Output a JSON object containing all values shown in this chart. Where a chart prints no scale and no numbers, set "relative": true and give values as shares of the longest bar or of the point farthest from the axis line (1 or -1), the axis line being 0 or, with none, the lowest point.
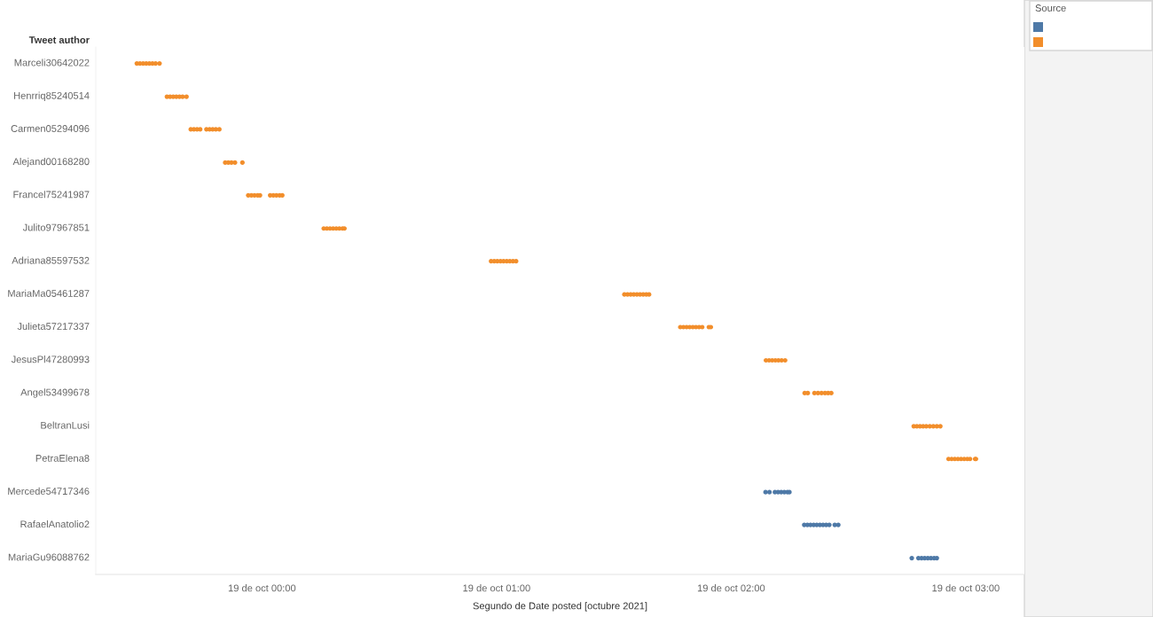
{
  "chart_data": {
    "type": "scatter",
    "relative": true,
    "marker": "circle",
    "legend_title": "Source",
    "ylabel": "Tweet author",
    "xlabel": "Segundo de Date posted [octubre 2021]",
    "xlim": [
      "2021-10-18T23:17:30",
      "2021-10-19T03:15:00"
    ],
    "xticks": [
      {
        "value": "2021-10-19T00:00",
        "label": "19 de oct 00:00"
      },
      {
        "value": "2021-10-19T01:00",
        "label": "19 de oct 01:00"
      },
      {
        "value": "2021-10-19T02:00",
        "label": "19 de oct 02:00"
      },
      {
        "value": "2021-10-19T03:00",
        "label": "19 de oct 03:00"
      }
    ],
    "annotations": [
      "Marceli30642022",
      "Henrriq85240514",
      "Carmen05294096",
      "Alejand00168280",
      "Francel75241987",
      "Julito97967851",
      "Adriana85597532",
      "MariaMa05461287",
      "Julieta57217337",
      "JesusPl47280993",
      "Angel53499678",
      "BeltranLusi",
      "PetraElena8",
      "Mercede54717346",
      "RafaelAnatolio2",
      "MariaGu96088762"
    ],
    "series": [
      {
        "color": "#4e79a7",
        "x": [
          "2021-10-19T02:08:48",
          "2021-10-19T02:09:48",
          "2021-10-19T02:11:12",
          "2021-10-19T02:12:00",
          "2021-10-19T02:12:48",
          "2021-10-19T02:13:36",
          "2021-10-19T02:14:24",
          "2021-10-19T02:14:54",
          "2021-10-19T02:18:42",
          "2021-10-19T02:19:30",
          "2021-10-19T02:20:18",
          "2021-10-19T02:21:06",
          "2021-10-19T02:21:54",
          "2021-10-19T02:22:42",
          "2021-10-19T02:23:30",
          "2021-10-19T02:24:18",
          "2021-10-19T02:25:06",
          "2021-10-19T02:26:30",
          "2021-10-19T02:27:24",
          "2021-10-19T02:46:12",
          "2021-10-19T02:47:54",
          "2021-10-19T02:48:42",
          "2021-10-19T02:49:30",
          "2021-10-19T02:50:18",
          "2021-10-19T02:51:06",
          "2021-10-19T02:51:54",
          "2021-10-19T02:52:36"
        ],
        "values": [
          0.161,
          0.161,
          0.161,
          0.161,
          0.161,
          0.161,
          0.161,
          0.161,
          0.097,
          0.097,
          0.097,
          0.097,
          0.097,
          0.097,
          0.097,
          0.097,
          0.097,
          0.097,
          0.097,
          0.032,
          0.032,
          0.032,
          0.032,
          0.032,
          0.032,
          0.032,
          0.032
        ]
      },
      {
        "color": "#f28e2b",
        "x": [
          "2021-10-18T23:28:00",
          "2021-10-18T23:28:48",
          "2021-10-18T23:29:36",
          "2021-10-18T23:30:24",
          "2021-10-18T23:31:12",
          "2021-10-18T23:32:00",
          "2021-10-18T23:32:48",
          "2021-10-18T23:33:48",
          "2021-10-18T23:35:42",
          "2021-10-18T23:36:30",
          "2021-10-18T23:37:18",
          "2021-10-18T23:38:06",
          "2021-10-18T23:38:54",
          "2021-10-18T23:39:42",
          "2021-10-18T23:40:42",
          "2021-10-18T23:41:48",
          "2021-10-18T23:42:36",
          "2021-10-18T23:43:24",
          "2021-10-18T23:44:12",
          "2021-10-18T23:45:48",
          "2021-10-18T23:46:36",
          "2021-10-18T23:47:24",
          "2021-10-18T23:48:12",
          "2021-10-18T23:49:06",
          "2021-10-18T23:50:36",
          "2021-10-18T23:51:24",
          "2021-10-18T23:52:12",
          "2021-10-18T23:53:06",
          "2021-10-18T23:55:00",
          "2021-10-18T23:56:30",
          "2021-10-18T23:57:18",
          "2021-10-18T23:58:06",
          "2021-10-18T23:58:54",
          "2021-10-18T23:59:30",
          "2021-10-19T00:02:06",
          "2021-10-19T00:02:54",
          "2021-10-19T00:03:42",
          "2021-10-19T00:04:30",
          "2021-10-19T00:05:12",
          "2021-10-19T00:15:48",
          "2021-10-19T00:16:36",
          "2021-10-19T00:17:24",
          "2021-10-19T00:18:12",
          "2021-10-19T00:19:00",
          "2021-10-19T00:19:48",
          "2021-10-19T00:20:36",
          "2021-10-19T00:21:06",
          "2021-10-19T00:58:36",
          "2021-10-19T00:59:24",
          "2021-10-19T01:00:12",
          "2021-10-19T01:01:00",
          "2021-10-19T01:01:48",
          "2021-10-19T01:02:36",
          "2021-10-19T01:03:24",
          "2021-10-19T01:04:12",
          "2021-10-19T01:05:00",
          "2021-10-19T01:32:42",
          "2021-10-19T01:33:30",
          "2021-10-19T01:34:18",
          "2021-10-19T01:35:06",
          "2021-10-19T01:35:54",
          "2021-10-19T01:36:42",
          "2021-10-19T01:37:30",
          "2021-10-19T01:38:18",
          "2021-10-19T01:39:00",
          "2021-10-19T01:47:00",
          "2021-10-19T01:47:48",
          "2021-10-19T01:48:36",
          "2021-10-19T01:49:24",
          "2021-10-19T01:50:12",
          "2021-10-19T01:51:00",
          "2021-10-19T01:51:48",
          "2021-10-19T01:52:36",
          "2021-10-19T01:54:18",
          "2021-10-19T01:54:48",
          "2021-10-19T02:08:54",
          "2021-10-19T02:09:42",
          "2021-10-19T02:10:30",
          "2021-10-19T02:11:18",
          "2021-10-19T02:12:06",
          "2021-10-19T02:12:54",
          "2021-10-19T02:13:48",
          "2021-10-19T02:18:48",
          "2021-10-19T02:19:36",
          "2021-10-19T02:21:18",
          "2021-10-19T02:22:12",
          "2021-10-19T02:23:06",
          "2021-10-19T02:24:00",
          "2021-10-19T02:24:48",
          "2021-10-19T02:25:36",
          "2021-10-19T02:46:42",
          "2021-10-19T02:47:30",
          "2021-10-19T02:48:18",
          "2021-10-19T02:49:06",
          "2021-10-19T02:49:54",
          "2021-10-19T02:50:48",
          "2021-10-19T02:51:42",
          "2021-10-19T02:52:36",
          "2021-10-19T02:53:30",
          "2021-10-19T02:55:36",
          "2021-10-19T02:56:24",
          "2021-10-19T02:57:12",
          "2021-10-19T02:58:00",
          "2021-10-19T02:58:48",
          "2021-10-19T02:59:36",
          "2021-10-19T03:00:24",
          "2021-10-19T03:01:06",
          "2021-10-19T03:02:24",
          "2021-10-19T03:02:36"
        ],
        "values": [
          1,
          1,
          1,
          1,
          1,
          1,
          1,
          1,
          0.935,
          0.935,
          0.935,
          0.935,
          0.935,
          0.935,
          0.935,
          0.871,
          0.871,
          0.871,
          0.871,
          0.871,
          0.871,
          0.871,
          0.871,
          0.871,
          0.806,
          0.806,
          0.806,
          0.806,
          0.806,
          0.742,
          0.742,
          0.742,
          0.742,
          0.742,
          0.742,
          0.742,
          0.742,
          0.742,
          0.742,
          0.677,
          0.677,
          0.677,
          0.677,
          0.677,
          0.677,
          0.677,
          0.677,
          0.613,
          0.613,
          0.613,
          0.613,
          0.613,
          0.613,
          0.613,
          0.613,
          0.613,
          0.548,
          0.548,
          0.548,
          0.548,
          0.548,
          0.548,
          0.548,
          0.548,
          0.548,
          0.484,
          0.484,
          0.484,
          0.484,
          0.484,
          0.484,
          0.484,
          0.484,
          0.484,
          0.484,
          0.419,
          0.419,
          0.419,
          0.419,
          0.419,
          0.419,
          0.419,
          0.355,
          0.355,
          0.355,
          0.355,
          0.355,
          0.355,
          0.355,
          0.355,
          0.29,
          0.29,
          0.29,
          0.29,
          0.29,
          0.29,
          0.29,
          0.29,
          0.29,
          0.226,
          0.226,
          0.226,
          0.226,
          0.226,
          0.226,
          0.226,
          0.226,
          0.226,
          0.226
        ]
      }
    ]
  }
}
